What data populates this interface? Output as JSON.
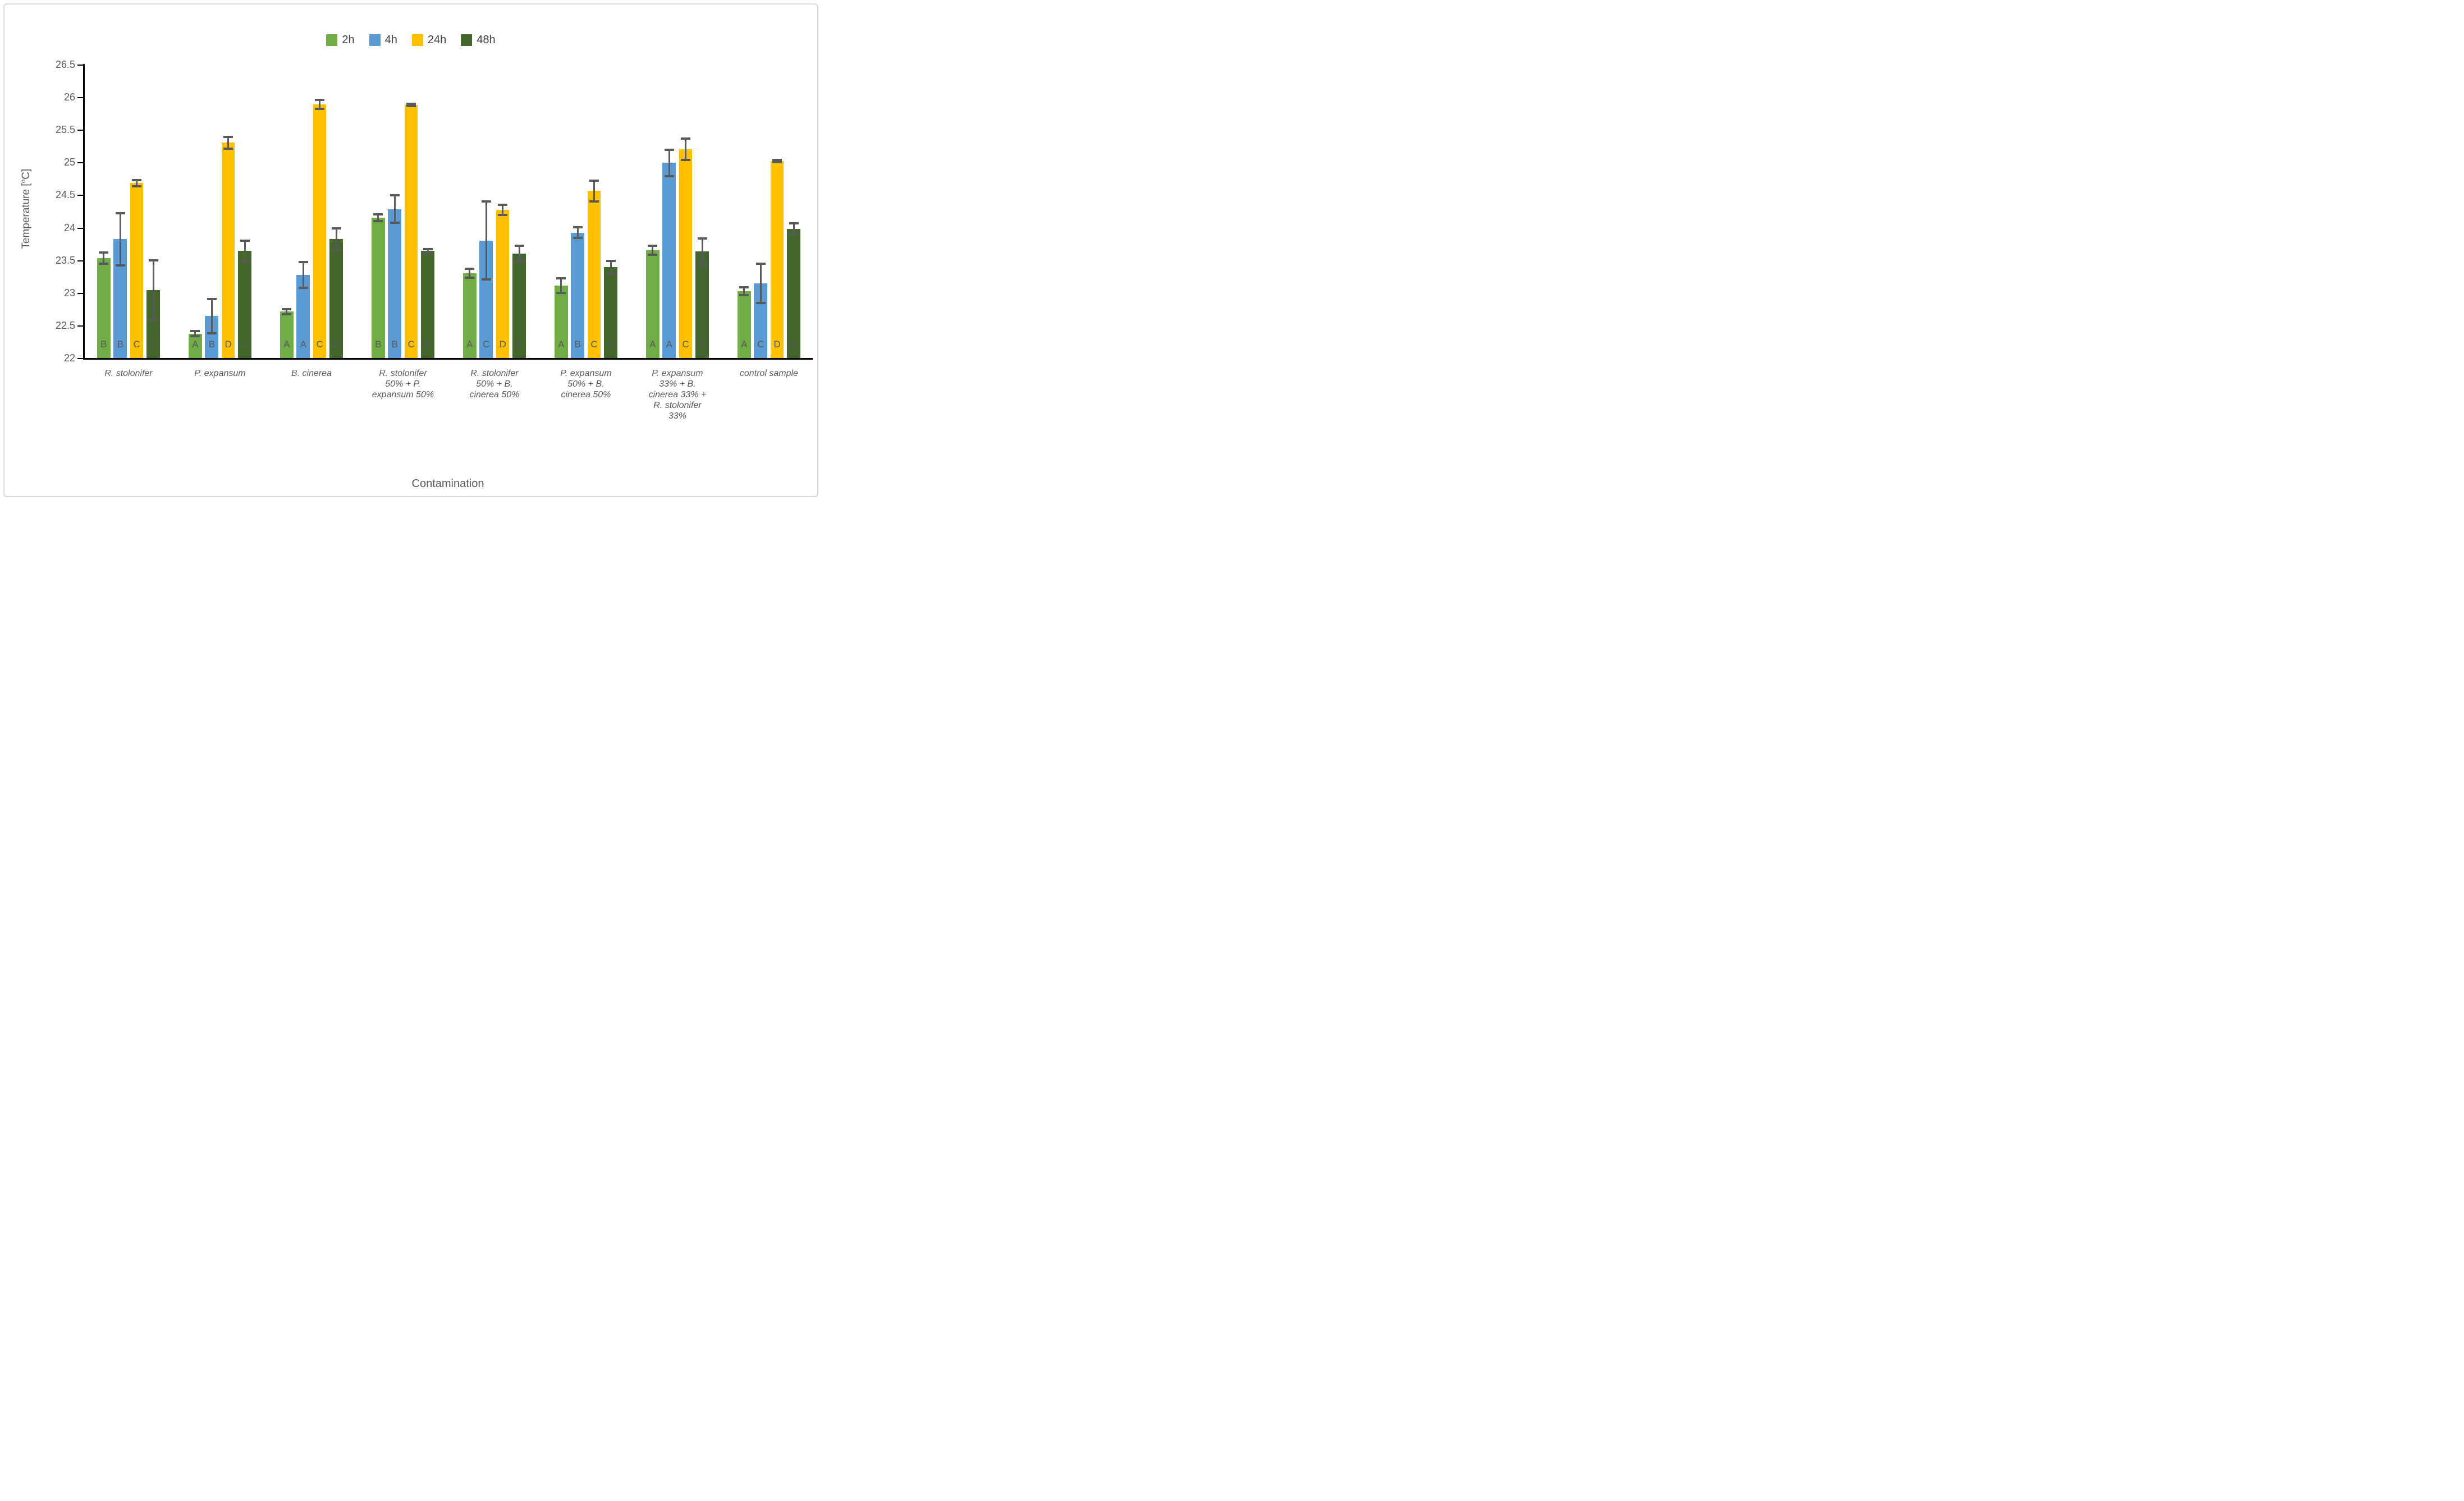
{
  "chart_data": {
    "type": "bar",
    "title": "",
    "xlabel": "Contamination",
    "ylabel": "Temperature [oC]",
    "ylabel_parts": {
      "prefix": "Temperature [",
      "sup": "o",
      "suffix": "C]"
    },
    "ylim": [
      22,
      26.5
    ],
    "ytick_step": 0.5,
    "ytick_labels": [
      "26.5",
      "26",
      "25.5",
      "25",
      "24.5",
      "24",
      "23.5",
      "23",
      "22.5",
      "22"
    ],
    "grid": false,
    "legend_position": "top-center",
    "categories": [
      {
        "label": "R. stolonifer",
        "label_lines": [
          "R. stolonifer"
        ]
      },
      {
        "label": "P.  expansum",
        "label_lines": [
          "P.  expansum"
        ]
      },
      {
        "label": "B. cinerea",
        "label_lines": [
          "B. cinerea"
        ]
      },
      {
        "label": "R. stolonifer 50% + P. expansum 50%",
        "label_lines": [
          "R. stolonifer",
          "50% + P.",
          "expansum 50%"
        ]
      },
      {
        "label": "R. stolonifer 50% + B. cinerea 50%",
        "label_lines": [
          "R. stolonifer",
          "50% + B.",
          "cinerea 50%"
        ]
      },
      {
        "label": "P.  expansum 50% + B. cinerea 50%",
        "label_lines": [
          "P.  expansum",
          "50% + B.",
          "cinerea 50%"
        ]
      },
      {
        "label": "P.  expansum 33% + B. cinerea 33% + R. stolonifer 33%",
        "label_lines": [
          "P.  expansum",
          "33% + B.",
          "cinerea 33% +",
          "R. stolonifer",
          "33%"
        ]
      },
      {
        "label": "control sample",
        "label_lines": [
          "control sample"
        ]
      }
    ],
    "series": [
      {
        "name": "2h",
        "color": "#70AD47",
        "values": [
          23.54,
          22.38,
          22.72,
          24.16,
          23.31,
          23.12,
          23.66,
          23.03
        ],
        "errors": [
          0.09,
          0.04,
          0.04,
          0.05,
          0.07,
          0.11,
          0.07,
          0.06
        ],
        "letters": [
          "B",
          "A",
          "A",
          "B",
          "A",
          "A",
          "A",
          "A"
        ]
      },
      {
        "name": "4h",
        "color": "#5B9BD5",
        "values": [
          23.83,
          22.65,
          23.28,
          24.29,
          23.81,
          23.93,
          25.0,
          23.15
        ],
        "errors": [
          0.4,
          0.26,
          0.2,
          0.21,
          0.6,
          0.08,
          0.2,
          0.3
        ],
        "letters": [
          "B",
          "B",
          "A",
          "B",
          "C",
          "B",
          "A",
          "C"
        ]
      },
      {
        "name": "24h",
        "color": "#FFC000",
        "values": [
          24.69,
          25.31,
          25.9,
          25.89,
          24.28,
          24.57,
          25.21,
          25.03
        ],
        "errors": [
          0.05,
          0.09,
          0.07,
          0.02,
          0.08,
          0.16,
          0.16,
          0.02
        ],
        "letters": [
          "C",
          "D",
          "C",
          "C",
          "D",
          "C",
          "C",
          "D"
        ]
      },
      {
        "name": "48h",
        "color": "#42662B",
        "values": [
          23.05,
          23.65,
          23.83,
          23.65,
          23.61,
          23.4,
          23.64,
          23.99
        ],
        "errors": [
          0.46,
          0.16,
          0.17,
          0.03,
          0.12,
          0.1,
          0.2,
          0.08
        ],
        "letters": [
          "A",
          "C",
          "B",
          "A",
          "B",
          "A",
          "B",
          "B"
        ]
      }
    ]
  },
  "colors": {
    "axis": "#000000",
    "error_bar": "#595959",
    "tick_text": "#595959",
    "category_text": "#595959",
    "legend_text": "#404040",
    "letter_text": "#595959",
    "frame_border": "#D9D9D9"
  }
}
